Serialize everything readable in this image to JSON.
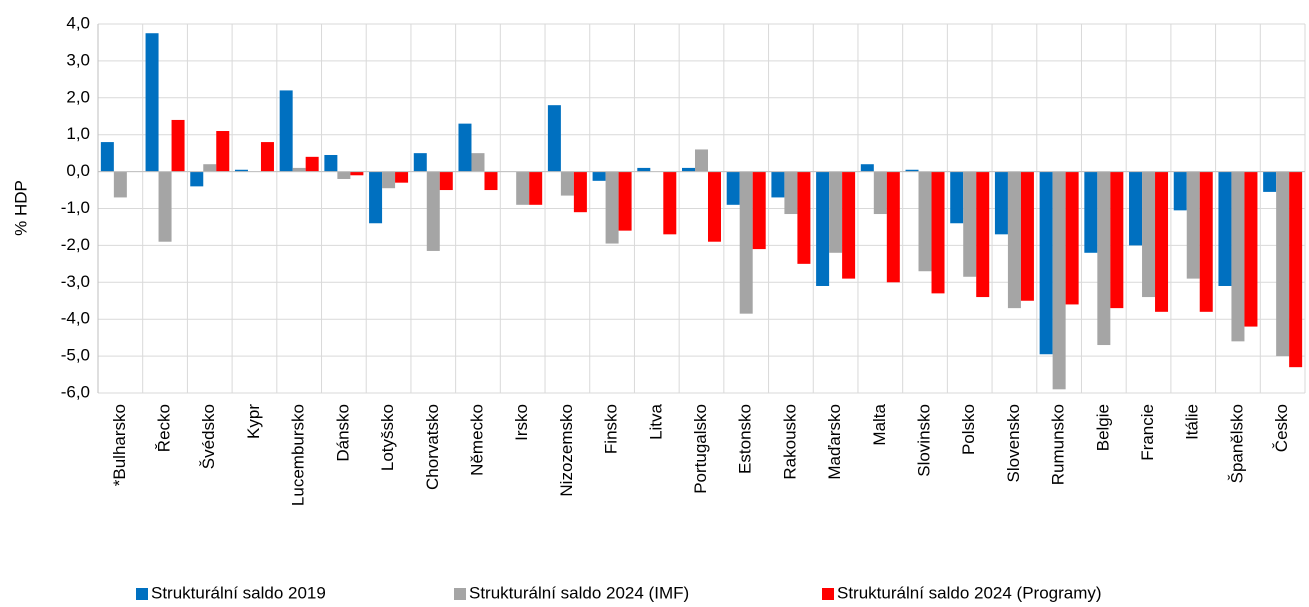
{
  "chart_data": {
    "type": "bar",
    "ylabel": "% HDP",
    "categories": [
      "*Bulharsko",
      "Řecko",
      "Švédsko",
      "Kypr",
      "Lucembursko",
      "Dánsko",
      "Lotyšsko",
      "Chorvatsko",
      "Německo",
      "Irsko",
      "Nizozemsko",
      "Finsko",
      "Litva",
      "Portugalsko",
      "Estonsko",
      "Rakousko",
      "Maďarsko",
      "Malta",
      "Slovinsko",
      "Polsko",
      "Slovensko",
      "Rumunsko",
      "Belgie",
      "Francie",
      "Itálie",
      "Španělsko",
      "Česko"
    ],
    "series": [
      {
        "name": "Strukturální saldo 2019",
        "color": "#0070c0",
        "values": [
          0.8,
          3.75,
          -0.4,
          0.05,
          2.2,
          0.45,
          -1.4,
          0.5,
          1.3,
          null,
          1.8,
          -0.25,
          0.1,
          0.1,
          -0.9,
          -0.7,
          -3.1,
          0.2,
          0.05,
          -1.4,
          -1.7,
          -4.95,
          -2.2,
          -2.0,
          -1.05,
          -3.1,
          -0.55
        ]
      },
      {
        "name": "Strukturální saldo 2024 (IMF)",
        "color": "#a5a5a5",
        "values": [
          -0.7,
          -1.9,
          0.2,
          null,
          0.1,
          -0.2,
          -0.45,
          -2.15,
          0.5,
          -0.9,
          -0.65,
          -1.95,
          null,
          0.6,
          -3.85,
          -1.15,
          -2.2,
          -1.15,
          -2.7,
          -2.85,
          -3.7,
          -5.9,
          -4.7,
          -3.4,
          -2.9,
          -4.6,
          -5.0
        ]
      },
      {
        "name": "Strukturální saldo 2024 (Programy)",
        "color": "#ff0000",
        "values": [
          null,
          1.4,
          1.1,
          0.8,
          0.4,
          -0.1,
          -0.3,
          -0.5,
          -0.5,
          -0.9,
          -1.1,
          -1.6,
          -1.7,
          -1.9,
          -2.1,
          -2.5,
          -2.9,
          -3.0,
          -3.3,
          -3.4,
          -3.5,
          -3.6,
          -3.7,
          -3.8,
          -3.8,
          -4.2,
          -5.3
        ]
      }
    ],
    "ylim": [
      -6,
      4
    ],
    "yticks": [
      {
        "value": 4,
        "label": "4,0"
      },
      {
        "value": 3,
        "label": "3,0"
      },
      {
        "value": 2,
        "label": "2,0"
      },
      {
        "value": 1,
        "label": "1,0"
      },
      {
        "value": 0,
        "label": "0,0"
      },
      {
        "value": -1,
        "label": "-1,0"
      },
      {
        "value": -2,
        "label": "-2,0"
      },
      {
        "value": -3,
        "label": "-3,0"
      },
      {
        "value": -4,
        "label": "-4,0"
      },
      {
        "value": -5,
        "label": "-5,0"
      },
      {
        "value": -6,
        "label": "-6,0"
      }
    ],
    "grid": true,
    "legend": "bottom"
  }
}
